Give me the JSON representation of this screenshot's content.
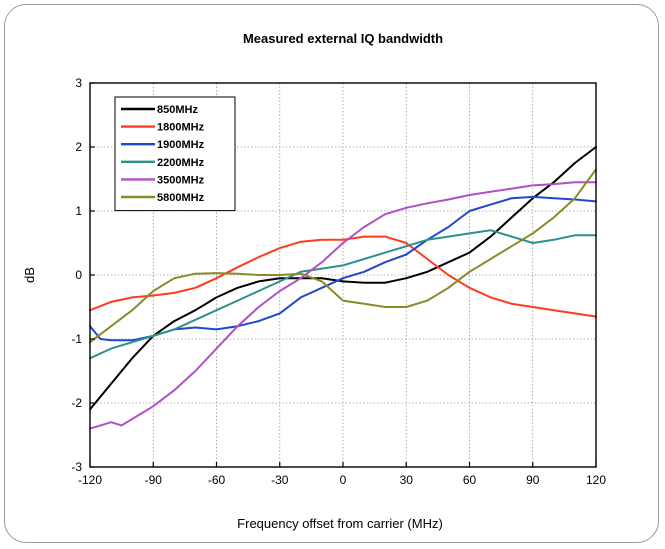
{
  "chart_data": {
    "type": "line",
    "title": "Measured external IQ bandwidth",
    "xlabel": "Frequency offset from carrier (MHz)",
    "ylabel": "dB",
    "xlim": [
      -120,
      120
    ],
    "ylim": [
      -3,
      3
    ],
    "xticks": [
      -120,
      -90,
      -60,
      -30,
      0,
      30,
      60,
      90,
      120
    ],
    "yticks": [
      -3,
      -2,
      -1,
      0,
      1,
      2,
      3
    ],
    "grid": true,
    "legend_position": "top-left",
    "series": [
      {
        "name": "850MHz",
        "color": "#000000",
        "x": [
          -120,
          -110,
          -100,
          -90,
          -80,
          -70,
          -60,
          -50,
          -40,
          -30,
          -20,
          -10,
          0,
          10,
          20,
          30,
          40,
          50,
          60,
          70,
          80,
          90,
          100,
          110,
          120
        ],
        "y": [
          -2.1,
          -1.7,
          -1.3,
          -0.95,
          -0.72,
          -0.55,
          -0.35,
          -0.2,
          -0.1,
          -0.05,
          -0.05,
          -0.05,
          -0.1,
          -0.12,
          -0.12,
          -0.05,
          0.05,
          0.2,
          0.35,
          0.6,
          0.9,
          1.2,
          1.45,
          1.75,
          2.0
        ]
      },
      {
        "name": "1800MHz",
        "color": "#ff3b1f",
        "x": [
          -120,
          -110,
          -100,
          -90,
          -80,
          -70,
          -60,
          -50,
          -40,
          -30,
          -20,
          -10,
          0,
          10,
          20,
          30,
          40,
          50,
          60,
          70,
          80,
          90,
          100,
          110,
          120
        ],
        "y": [
          -0.55,
          -0.42,
          -0.35,
          -0.32,
          -0.28,
          -0.2,
          -0.05,
          0.12,
          0.28,
          0.42,
          0.52,
          0.55,
          0.55,
          0.6,
          0.6,
          0.5,
          0.25,
          0.0,
          -0.2,
          -0.35,
          -0.45,
          -0.5,
          -0.55,
          -0.6,
          -0.65
        ]
      },
      {
        "name": "1900MHz",
        "color": "#2048c8",
        "x": [
          -120,
          -115,
          -110,
          -100,
          -90,
          -80,
          -70,
          -60,
          -50,
          -40,
          -30,
          -20,
          -10,
          0,
          10,
          20,
          30,
          40,
          50,
          60,
          70,
          80,
          90,
          100,
          110,
          120
        ],
        "y": [
          -0.8,
          -1.0,
          -1.02,
          -1.02,
          -0.95,
          -0.85,
          -0.82,
          -0.85,
          -0.8,
          -0.72,
          -0.6,
          -0.35,
          -0.2,
          -0.05,
          0.05,
          0.2,
          0.32,
          0.55,
          0.75,
          1.0,
          1.1,
          1.2,
          1.22,
          1.2,
          1.18,
          1.15
        ]
      },
      {
        "name": "2200MHz",
        "color": "#2e908a",
        "x": [
          -120,
          -110,
          -100,
          -90,
          -80,
          -70,
          -60,
          -50,
          -40,
          -30,
          -20,
          -10,
          0,
          10,
          20,
          30,
          40,
          50,
          60,
          70,
          80,
          90,
          100,
          110,
          120
        ],
        "y": [
          -1.3,
          -1.15,
          -1.05,
          -0.95,
          -0.85,
          -0.7,
          -0.55,
          -0.4,
          -0.25,
          -0.1,
          0.05,
          0.1,
          0.15,
          0.25,
          0.35,
          0.45,
          0.55,
          0.6,
          0.65,
          0.7,
          0.6,
          0.5,
          0.55,
          0.62,
          0.62
        ]
      },
      {
        "name": "3500MHz",
        "color": "#b04fc8",
        "x": [
          -120,
          -115,
          -110,
          -105,
          -100,
          -90,
          -80,
          -70,
          -60,
          -50,
          -40,
          -30,
          -20,
          -10,
          0,
          10,
          20,
          30,
          40,
          50,
          60,
          70,
          80,
          90,
          100,
          110,
          120
        ],
        "y": [
          -2.4,
          -2.35,
          -2.3,
          -2.35,
          -2.25,
          -2.05,
          -1.8,
          -1.5,
          -1.15,
          -0.8,
          -0.5,
          -0.25,
          -0.05,
          0.2,
          0.5,
          0.75,
          0.95,
          1.05,
          1.12,
          1.18,
          1.25,
          1.3,
          1.35,
          1.4,
          1.42,
          1.45,
          1.45
        ]
      },
      {
        "name": "5800MHz",
        "color": "#8a8a2a",
        "x": [
          -120,
          -110,
          -100,
          -90,
          -80,
          -70,
          -60,
          -50,
          -40,
          -30,
          -20,
          -10,
          0,
          10,
          20,
          30,
          40,
          50,
          60,
          70,
          80,
          90,
          100,
          110,
          120
        ],
        "y": [
          -1.05,
          -0.8,
          -0.55,
          -0.25,
          -0.05,
          0.02,
          0.03,
          0.02,
          0.0,
          0.0,
          0.02,
          -0.1,
          -0.4,
          -0.45,
          -0.5,
          -0.5,
          -0.4,
          -0.2,
          0.05,
          0.25,
          0.45,
          0.65,
          0.9,
          1.2,
          1.65
        ]
      }
    ]
  }
}
